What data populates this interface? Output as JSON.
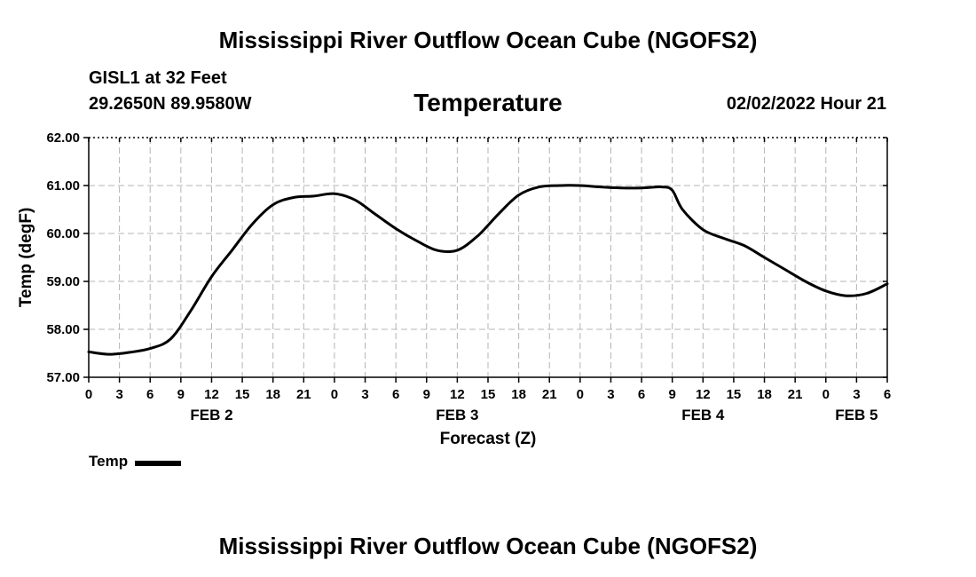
{
  "page": {
    "title": "Mississippi River Outflow Ocean Cube (NGOFS2)",
    "station": "GISL1 at 32 Feet",
    "coords": "29.2650N  89.9580W",
    "datetime": "02/02/2022 Hour 21",
    "footer_title": "Mississippi River Outflow Ocean Cube (NGOFS2)"
  },
  "chart_data": {
    "type": "line",
    "title": "Temperature",
    "xlabel": "Forecast (Z)",
    "ylabel": "Temp (degF)",
    "ylim": [
      57.0,
      62.0
    ],
    "xlim": [
      0,
      78
    ],
    "y_ticks": [
      "57.00",
      "58.00",
      "59.00",
      "60.00",
      "61.00",
      "62.00"
    ],
    "y_tick_values": [
      57,
      58,
      59,
      60,
      61,
      62
    ],
    "x_ticks": [
      {
        "hour": 0,
        "label": "0"
      },
      {
        "hour": 3,
        "label": "3"
      },
      {
        "hour": 6,
        "label": "6"
      },
      {
        "hour": 9,
        "label": "9"
      },
      {
        "hour": 12,
        "label": "12"
      },
      {
        "hour": 15,
        "label": "15"
      },
      {
        "hour": 18,
        "label": "18"
      },
      {
        "hour": 21,
        "label": "21"
      },
      {
        "hour": 24,
        "label": "0"
      },
      {
        "hour": 27,
        "label": "3"
      },
      {
        "hour": 30,
        "label": "6"
      },
      {
        "hour": 33,
        "label": "9"
      },
      {
        "hour": 36,
        "label": "12"
      },
      {
        "hour": 39,
        "label": "15"
      },
      {
        "hour": 42,
        "label": "18"
      },
      {
        "hour": 45,
        "label": "21"
      },
      {
        "hour": 48,
        "label": "0"
      },
      {
        "hour": 51,
        "label": "3"
      },
      {
        "hour": 54,
        "label": "6"
      },
      {
        "hour": 57,
        "label": "9"
      },
      {
        "hour": 60,
        "label": "12"
      },
      {
        "hour": 63,
        "label": "15"
      },
      {
        "hour": 66,
        "label": "18"
      },
      {
        "hour": 69,
        "label": "21"
      },
      {
        "hour": 72,
        "label": "0"
      },
      {
        "hour": 75,
        "label": "3"
      },
      {
        "hour": 78,
        "label": "6"
      }
    ],
    "date_labels": [
      {
        "hour": 12,
        "label": "FEB 2"
      },
      {
        "hour": 36,
        "label": "FEB 3"
      },
      {
        "hour": 60,
        "label": "FEB 4"
      },
      {
        "hour": 75,
        "label": "FEB 5"
      }
    ],
    "grid": true,
    "legend": "bottom-left",
    "series": [
      {
        "name": "Temp",
        "color": "#000000",
        "x": [
          0,
          2,
          4,
          6,
          8,
          10,
          12,
          14,
          16,
          18,
          20,
          22,
          24,
          26,
          28,
          30,
          32,
          34,
          36,
          38,
          40,
          42,
          44,
          46,
          48,
          50,
          52,
          54,
          56,
          57,
          58,
          60,
          62,
          64,
          66,
          68,
          70,
          72,
          74,
          76,
          78
        ],
        "values": [
          57.53,
          57.48,
          57.52,
          57.6,
          57.8,
          58.4,
          59.1,
          59.65,
          60.2,
          60.6,
          60.75,
          60.78,
          60.83,
          60.7,
          60.4,
          60.1,
          59.85,
          59.65,
          59.65,
          59.95,
          60.4,
          60.8,
          60.97,
          61.0,
          61.0,
          60.97,
          60.95,
          60.95,
          60.97,
          60.9,
          60.5,
          60.08,
          59.9,
          59.75,
          59.5,
          59.25,
          59.0,
          58.8,
          58.7,
          58.75,
          58.95
        ]
      }
    ]
  }
}
